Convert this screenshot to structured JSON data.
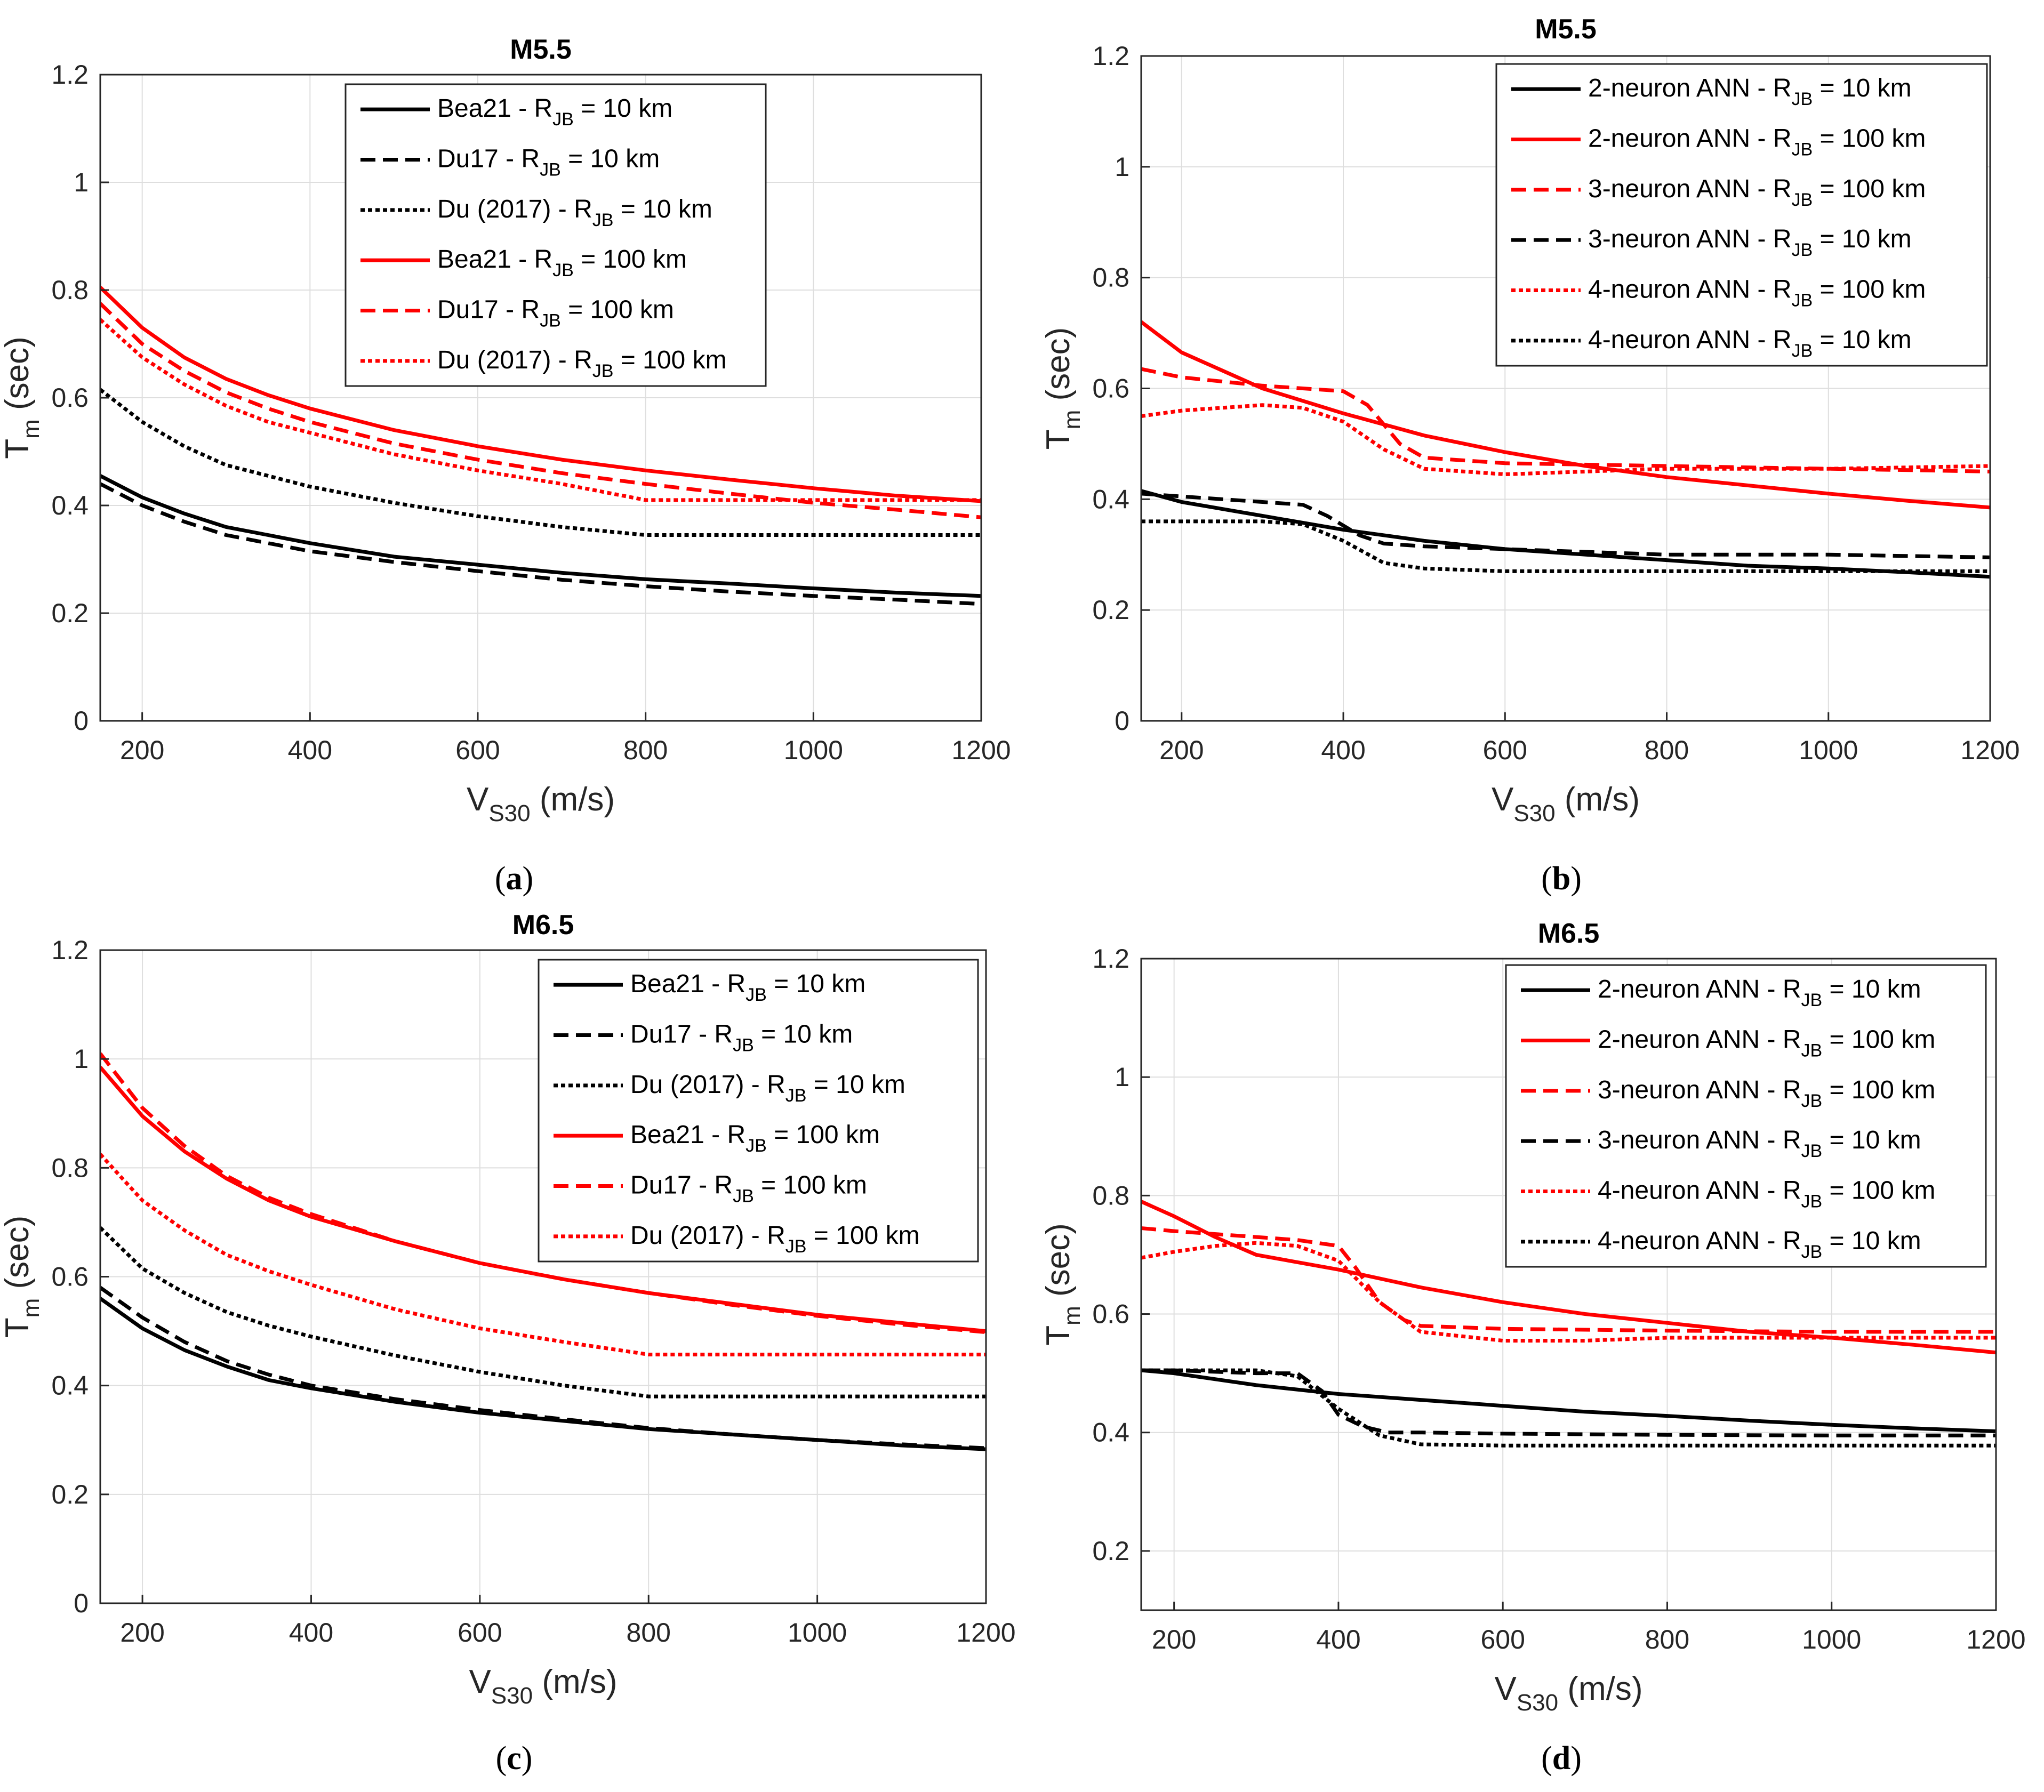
{
  "colors": {
    "black": "#000000",
    "red": "#ff0000",
    "grid": "#dedede",
    "axis": "#262626"
  },
  "chart_data": [
    {
      "type": "line",
      "panel": "a",
      "caption_letter": "a",
      "title": "M5.5",
      "xlabel_main": "V",
      "xlabel_sub": "S30",
      "xlabel_unit": " (m/s)",
      "ylabel_main": "T",
      "ylabel_sub": "m",
      "ylabel_unit": " (sec)",
      "xlim": [
        150,
        1200
      ],
      "ylim": [
        0,
        1.2
      ],
      "xticks": [
        200,
        400,
        600,
        800,
        1000,
        1200
      ],
      "yticks": [
        0,
        0.2,
        0.4,
        0.6,
        0.8,
        1,
        1.2
      ],
      "ytick_labels": [
        "0",
        "0.2",
        "0.4",
        "0.6",
        "0.8",
        "1",
        "1.2"
      ],
      "legend_position": "top-right",
      "series": [
        {
          "name": "Bea21",
          "distance": "10",
          "color": "black",
          "style": "solid",
          "x": [
            150,
            200,
            250,
            300,
            350,
            400,
            500,
            600,
            700,
            800,
            900,
            1000,
            1100,
            1200
          ],
          "y": [
            0.455,
            0.415,
            0.385,
            0.36,
            0.345,
            0.33,
            0.305,
            0.29,
            0.275,
            0.263,
            0.255,
            0.246,
            0.238,
            0.232
          ]
        },
        {
          "name": "Du17",
          "distance": "10",
          "color": "black",
          "style": "dashed",
          "x": [
            150,
            200,
            250,
            300,
            350,
            400,
            500,
            600,
            700,
            800,
            900,
            1000,
            1100,
            1200
          ],
          "y": [
            0.44,
            0.4,
            0.37,
            0.345,
            0.33,
            0.315,
            0.295,
            0.278,
            0.262,
            0.25,
            0.24,
            0.232,
            0.225,
            0.217
          ]
        },
        {
          "name": "Du (2017)",
          "distance": "10",
          "color": "black",
          "style": "dotted",
          "x": [
            150,
            200,
            250,
            300,
            350,
            400,
            500,
            600,
            700,
            800,
            900,
            1000,
            1100,
            1200
          ],
          "y": [
            0.615,
            0.555,
            0.51,
            0.475,
            0.455,
            0.435,
            0.405,
            0.38,
            0.36,
            0.345,
            0.345,
            0.345,
            0.345,
            0.345
          ]
        },
        {
          "name": "Bea21",
          "distance": "100",
          "color": "red",
          "style": "solid",
          "x": [
            150,
            200,
            250,
            300,
            350,
            400,
            500,
            600,
            700,
            800,
            900,
            1000,
            1100,
            1200
          ],
          "y": [
            0.805,
            0.73,
            0.675,
            0.635,
            0.605,
            0.58,
            0.54,
            0.51,
            0.485,
            0.465,
            0.448,
            0.432,
            0.418,
            0.408
          ]
        },
        {
          "name": "Du17",
          "distance": "100",
          "color": "red",
          "style": "dashed",
          "x": [
            150,
            200,
            250,
            300,
            350,
            400,
            500,
            600,
            700,
            800,
            900,
            1000,
            1100,
            1200
          ],
          "y": [
            0.775,
            0.7,
            0.65,
            0.61,
            0.58,
            0.555,
            0.515,
            0.485,
            0.46,
            0.44,
            0.422,
            0.405,
            0.392,
            0.378
          ]
        },
        {
          "name": "Du (2017)",
          "distance": "100",
          "color": "red",
          "style": "dotted",
          "x": [
            150,
            200,
            250,
            300,
            350,
            400,
            500,
            600,
            700,
            800,
            900,
            1000,
            1100,
            1200
          ],
          "y": [
            0.745,
            0.675,
            0.625,
            0.585,
            0.555,
            0.535,
            0.495,
            0.465,
            0.44,
            0.41,
            0.41,
            0.41,
            0.41,
            0.41
          ]
        }
      ]
    },
    {
      "type": "line",
      "panel": "b",
      "caption_letter": "b",
      "title": "M5.5",
      "xlabel_main": "V",
      "xlabel_sub": "S30",
      "xlabel_unit": " (m/s)",
      "ylabel_main": "T",
      "ylabel_sub": "m",
      "ylabel_unit": " (sec)",
      "xlim": [
        150,
        1200
      ],
      "ylim": [
        0,
        1.2
      ],
      "xticks": [
        200,
        400,
        600,
        800,
        1000,
        1200
      ],
      "yticks": [
        0,
        0.2,
        0.4,
        0.6,
        0.8,
        1,
        1.2
      ],
      "ytick_labels": [
        "0",
        "0.2",
        "0.4",
        "0.6",
        "0.8",
        "1",
        "1.2"
      ],
      "legend_position": "top-right",
      "series": [
        {
          "name": "2-neuron ANN",
          "distance": "10",
          "color": "black",
          "style": "solid",
          "x": [
            150,
            200,
            300,
            400,
            500,
            600,
            700,
            800,
            900,
            1000,
            1100,
            1200
          ],
          "y": [
            0.415,
            0.395,
            0.37,
            0.345,
            0.325,
            0.31,
            0.3,
            0.29,
            0.28,
            0.275,
            0.268,
            0.26
          ]
        },
        {
          "name": "2-neuron ANN",
          "distance": "100",
          "color": "red",
          "style": "solid",
          "x": [
            150,
            200,
            300,
            400,
            500,
            600,
            700,
            800,
            900,
            1000,
            1100,
            1200
          ],
          "y": [
            0.72,
            0.665,
            0.6,
            0.555,
            0.515,
            0.485,
            0.46,
            0.44,
            0.425,
            0.41,
            0.397,
            0.385
          ]
        },
        {
          "name": "3-neuron ANN",
          "distance": "100",
          "color": "red",
          "style": "dashed",
          "x": [
            150,
            200,
            300,
            350,
            400,
            430,
            470,
            500,
            600,
            800,
            1000,
            1200
          ],
          "y": [
            0.635,
            0.62,
            0.605,
            0.6,
            0.595,
            0.57,
            0.5,
            0.475,
            0.465,
            0.46,
            0.455,
            0.45
          ]
        },
        {
          "name": "3-neuron ANN",
          "distance": "10",
          "color": "black",
          "style": "dashed",
          "x": [
            150,
            200,
            300,
            350,
            380,
            420,
            450,
            500,
            600,
            800,
            1000,
            1200
          ],
          "y": [
            0.41,
            0.405,
            0.395,
            0.39,
            0.37,
            0.335,
            0.32,
            0.315,
            0.31,
            0.3,
            0.3,
            0.295
          ]
        },
        {
          "name": "4-neuron ANN",
          "distance": "100",
          "color": "red",
          "style": "dotted",
          "x": [
            150,
            200,
            250,
            300,
            350,
            400,
            450,
            500,
            600,
            700,
            800,
            1000,
            1200
          ],
          "y": [
            0.55,
            0.56,
            0.565,
            0.57,
            0.565,
            0.54,
            0.49,
            0.455,
            0.445,
            0.45,
            0.455,
            0.455,
            0.46
          ]
        },
        {
          "name": "4-neuron ANN",
          "distance": "10",
          "color": "black",
          "style": "dotted",
          "x": [
            150,
            200,
            300,
            350,
            400,
            450,
            500,
            600,
            800,
            1000,
            1200
          ],
          "y": [
            0.36,
            0.36,
            0.36,
            0.355,
            0.325,
            0.285,
            0.275,
            0.27,
            0.27,
            0.27,
            0.27
          ]
        }
      ]
    },
    {
      "type": "line",
      "panel": "c",
      "caption_letter": "c",
      "title": "M6.5",
      "xlabel_main": "V",
      "xlabel_sub": "S30",
      "xlabel_unit": " (m/s)",
      "ylabel_main": "T",
      "ylabel_sub": "m",
      "ylabel_unit": " (sec)",
      "xlim": [
        150,
        1200
      ],
      "ylim": [
        0,
        1.2
      ],
      "xticks": [
        200,
        400,
        600,
        800,
        1000,
        1200
      ],
      "yticks": [
        0,
        0.2,
        0.4,
        0.6,
        0.8,
        1,
        1.2
      ],
      "ytick_labels": [
        "0",
        "0.2",
        "0.4",
        "0.6",
        "0.8",
        "1",
        "1.2"
      ],
      "legend_position": "top-right",
      "series": [
        {
          "name": "Bea21",
          "distance": "10",
          "color": "black",
          "style": "solid",
          "x": [
            150,
            200,
            250,
            300,
            350,
            400,
            500,
            600,
            700,
            800,
            900,
            1000,
            1100,
            1200
          ],
          "y": [
            0.56,
            0.505,
            0.465,
            0.435,
            0.41,
            0.395,
            0.37,
            0.35,
            0.335,
            0.32,
            0.31,
            0.3,
            0.29,
            0.283
          ]
        },
        {
          "name": "Du17",
          "distance": "10",
          "color": "black",
          "style": "dashed",
          "x": [
            150,
            200,
            250,
            300,
            350,
            400,
            500,
            600,
            700,
            800,
            900,
            1000,
            1100,
            1200
          ],
          "y": [
            0.58,
            0.525,
            0.48,
            0.445,
            0.42,
            0.4,
            0.375,
            0.355,
            0.338,
            0.322,
            0.31,
            0.3,
            0.292,
            0.285
          ]
        },
        {
          "name": "Du (2017)",
          "distance": "10",
          "color": "black",
          "style": "dotted",
          "x": [
            150,
            200,
            250,
            300,
            350,
            400,
            500,
            600,
            700,
            800,
            900,
            1000,
            1100,
            1200
          ],
          "y": [
            0.69,
            0.615,
            0.57,
            0.535,
            0.51,
            0.49,
            0.455,
            0.425,
            0.4,
            0.38,
            0.38,
            0.38,
            0.38,
            0.38
          ]
        },
        {
          "name": "Bea21",
          "distance": "100",
          "color": "red",
          "style": "solid",
          "x": [
            150,
            200,
            250,
            300,
            350,
            400,
            500,
            600,
            700,
            800,
            900,
            1000,
            1100,
            1200
          ],
          "y": [
            0.985,
            0.895,
            0.83,
            0.78,
            0.74,
            0.71,
            0.665,
            0.625,
            0.595,
            0.57,
            0.55,
            0.53,
            0.515,
            0.5
          ]
        },
        {
          "name": "Du17",
          "distance": "100",
          "color": "red",
          "style": "dashed",
          "x": [
            150,
            200,
            250,
            300,
            350,
            400,
            500,
            600,
            700,
            800,
            900,
            1000,
            1100,
            1200
          ],
          "y": [
            1.01,
            0.91,
            0.84,
            0.785,
            0.745,
            0.715,
            0.665,
            0.625,
            0.595,
            0.57,
            0.548,
            0.528,
            0.512,
            0.498
          ]
        },
        {
          "name": "Du (2017)",
          "distance": "100",
          "color": "red",
          "style": "dotted",
          "x": [
            150,
            200,
            250,
            300,
            350,
            400,
            500,
            600,
            700,
            800,
            900,
            1000,
            1100,
            1200
          ],
          "y": [
            0.825,
            0.74,
            0.685,
            0.64,
            0.61,
            0.585,
            0.54,
            0.505,
            0.48,
            0.457,
            0.457,
            0.457,
            0.457,
            0.457
          ]
        }
      ]
    },
    {
      "type": "line",
      "panel": "d",
      "caption_letter": "d",
      "title": "M6.5",
      "xlabel_main": "V",
      "xlabel_sub": "S30",
      "xlabel_unit": " (m/s)",
      "ylabel_main": "T",
      "ylabel_sub": "m",
      "ylabel_unit": " (sec)",
      "xlim": [
        160,
        1200
      ],
      "ylim": [
        0.1,
        1.2
      ],
      "xticks": [
        200,
        400,
        600,
        800,
        1000,
        1200
      ],
      "yticks": [
        0.2,
        0.4,
        0.6,
        0.8,
        1,
        1.2
      ],
      "ytick_labels": [
        "0.2",
        "0.4",
        "0.6",
        "0.8",
        "1",
        "1.2"
      ],
      "legend_position": "top-right",
      "series": [
        {
          "name": "2-neuron ANN",
          "distance": "10",
          "color": "black",
          "style": "solid",
          "x": [
            160,
            200,
            300,
            400,
            500,
            600,
            700,
            800,
            900,
            1000,
            1100,
            1200
          ],
          "y": [
            0.505,
            0.5,
            0.48,
            0.465,
            0.455,
            0.445,
            0.435,
            0.428,
            0.42,
            0.413,
            0.407,
            0.402
          ]
        },
        {
          "name": "2-neuron ANN",
          "distance": "100",
          "color": "red",
          "style": "solid",
          "x": [
            160,
            200,
            250,
            300,
            400,
            500,
            600,
            700,
            800,
            900,
            1000,
            1100,
            1200
          ],
          "y": [
            0.79,
            0.765,
            0.73,
            0.7,
            0.675,
            0.645,
            0.62,
            0.6,
            0.585,
            0.57,
            0.56,
            0.548,
            0.535
          ]
        },
        {
          "name": "3-neuron ANN",
          "distance": "100",
          "color": "red",
          "style": "dashed",
          "x": [
            160,
            200,
            300,
            350,
            400,
            420,
            450,
            480,
            500,
            600,
            800,
            1000,
            1200
          ],
          "y": [
            0.745,
            0.74,
            0.73,
            0.725,
            0.715,
            0.68,
            0.62,
            0.59,
            0.58,
            0.575,
            0.572,
            0.57,
            0.57
          ]
        },
        {
          "name": "3-neuron ANN",
          "distance": "10",
          "color": "black",
          "style": "dashed",
          "x": [
            160,
            200,
            300,
            350,
            380,
            400,
            430,
            460,
            500,
            600,
            800,
            1000,
            1200
          ],
          "y": [
            0.505,
            0.505,
            0.5,
            0.5,
            0.47,
            0.43,
            0.41,
            0.4,
            0.4,
            0.398,
            0.396,
            0.395,
            0.395
          ]
        },
        {
          "name": "4-neuron ANN",
          "distance": "100",
          "color": "red",
          "style": "dotted",
          "x": [
            160,
            200,
            250,
            300,
            350,
            400,
            450,
            500,
            600,
            700,
            800,
            1000,
            1200
          ],
          "y": [
            0.695,
            0.705,
            0.715,
            0.72,
            0.715,
            0.69,
            0.62,
            0.57,
            0.555,
            0.555,
            0.56,
            0.56,
            0.56
          ]
        },
        {
          "name": "4-neuron ANN",
          "distance": "10",
          "color": "black",
          "style": "dotted",
          "x": [
            160,
            200,
            300,
            350,
            400,
            450,
            500,
            600,
            800,
            1000,
            1200
          ],
          "y": [
            0.505,
            0.505,
            0.505,
            0.495,
            0.44,
            0.395,
            0.38,
            0.378,
            0.378,
            0.378,
            0.378
          ]
        }
      ]
    }
  ]
}
